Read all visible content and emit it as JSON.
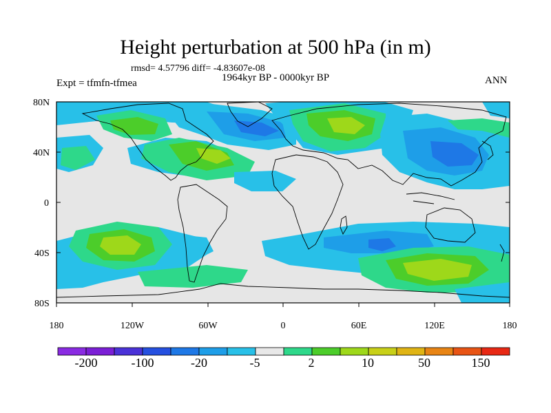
{
  "title": "Height perturbation at 500 hPa (in m)",
  "stats": "rmsd= 4.57796  diff= -4.83607e-08",
  "period": "1964kyr BP - 0000kyr BP",
  "experiment": "Expt = tfmfn-tfmea",
  "season": "ANN",
  "axes": {
    "lat_labels": [
      "80N",
      "40N",
      "0",
      "40S",
      "80S"
    ],
    "lon_labels": [
      "180",
      "120W",
      "60W",
      "0",
      "60E",
      "120E",
      "180"
    ]
  },
  "colorbar": {
    "colors": [
      "#8a2be2",
      "#7b1fd6",
      "#4a32d8",
      "#2550e0",
      "#1e78e6",
      "#1e9ee8",
      "#28c0e8",
      "#e8e8e8",
      "#2ed88a",
      "#4ccd2a",
      "#9ed81a",
      "#c8d018",
      "#e0b414",
      "#e88414",
      "#e85414",
      "#e82814"
    ],
    "labels": [
      "-200",
      "-100",
      "-20",
      "-5",
      "2",
      "10",
      "50",
      "150"
    ]
  },
  "palette": {
    "neutral": "#e6e6e6",
    "neg_light": "#28c0e8",
    "neg_mid": "#1e9ee8",
    "neg_dark": "#1e78e6",
    "pos_light": "#2ed88a",
    "pos_mid": "#4ccd2a",
    "pos_dark": "#9ed81a",
    "pos_max": "#c8d018"
  }
}
